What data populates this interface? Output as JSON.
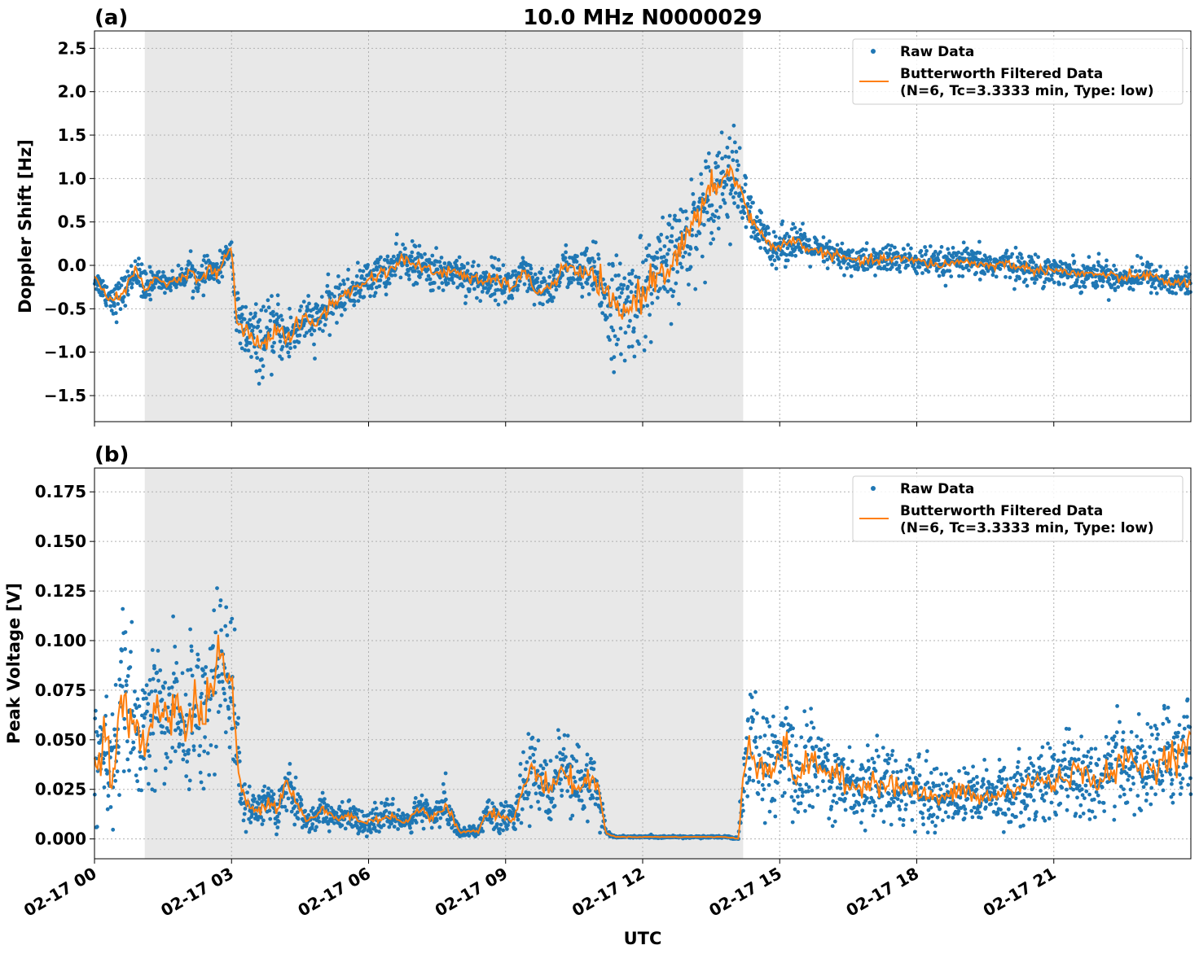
{
  "figure": {
    "title": "10.0 MHz N0000029",
    "xlabel": "UTC",
    "x_tick_labels": [
      "02-17 00",
      "02-17 03",
      "02-17 06",
      "02-17 09",
      "02-17 12",
      "02-17 15",
      "02-17 18",
      "02-17 21"
    ],
    "shaded_region_hours": [
      1.1,
      14.2
    ],
    "colors": {
      "raw": "#1f77b4",
      "filtered": "#ff7f0e",
      "shade": "#e8e8e8",
      "grid": "#b0b0b0"
    }
  },
  "chart_data": [
    {
      "panel": "(a)",
      "type": "scatter",
      "title": "10.0 MHz N0000029",
      "ylabel": "Doppler Shift [Hz]",
      "xlabel": "",
      "xlim_hours": [
        0,
        24
      ],
      "ylim": [
        -1.8,
        2.7
      ],
      "y_ticks": [
        -1.5,
        -1.0,
        -0.5,
        0.0,
        0.5,
        1.0,
        1.5,
        2.0,
        2.5
      ],
      "y_tick_labels": [
        "−1.5",
        "−1.0",
        "−0.5",
        "0.0",
        "0.5",
        "1.0",
        "1.5",
        "2.0",
        "2.5"
      ],
      "grid": true,
      "legend": {
        "placement": "top-right",
        "entries": [
          "Raw Data",
          "Butterworth Filtered Data",
          "(N=6, Tc=3.3333 min, Type: low)"
        ]
      },
      "series": [
        {
          "name": "Butterworth Filtered Data (N=6, Tc=3.3333 min, Type: low)",
          "x_hours": [
            0,
            0.3,
            0.5,
            0.7,
            0.9,
            1.1,
            1.3,
            1.6,
            1.9,
            2.1,
            2.3,
            2.5,
            2.7,
            2.85,
            3.0,
            3.1,
            3.2,
            3.4,
            3.6,
            3.8,
            4.0,
            4.2,
            4.4,
            4.6,
            4.8,
            5.0,
            5.3,
            5.6,
            5.9,
            6.2,
            6.5,
            6.8,
            7.0,
            7.3,
            7.6,
            7.9,
            8.2,
            8.5,
            8.8,
            9.1,
            9.4,
            9.7,
            10.0,
            10.3,
            10.6,
            10.9,
            11.1,
            11.3,
            11.5,
            11.7,
            11.9,
            12.1,
            12.3,
            12.5,
            12.7,
            12.9,
            13.1,
            13.3,
            13.5,
            13.7,
            13.9,
            14.1,
            14.3,
            14.5,
            14.8,
            15.0,
            15.3,
            15.6,
            15.9,
            16.3,
            16.7,
            17.0,
            17.5,
            18.0,
            18.5,
            19.0,
            19.5,
            20.0,
            20.5,
            21.0,
            21.5,
            22.0,
            22.5,
            23.0,
            23.5,
            24.0
          ],
          "y": [
            -0.15,
            -0.35,
            -0.4,
            -0.25,
            -0.05,
            -0.3,
            -0.15,
            -0.2,
            -0.15,
            -0.05,
            -0.2,
            -0.05,
            -0.1,
            0.1,
            0.2,
            -0.55,
            -0.75,
            -0.8,
            -0.9,
            -0.85,
            -0.7,
            -0.85,
            -0.75,
            -0.6,
            -0.7,
            -0.55,
            -0.4,
            -0.3,
            -0.2,
            -0.1,
            -0.05,
            0.1,
            0.0,
            -0.05,
            -0.1,
            -0.05,
            -0.15,
            -0.2,
            -0.15,
            -0.25,
            -0.1,
            -0.3,
            -0.25,
            0.0,
            -0.1,
            -0.1,
            -0.25,
            -0.45,
            -0.55,
            -0.5,
            -0.35,
            -0.25,
            -0.1,
            -0.05,
            0.1,
            0.25,
            0.45,
            0.65,
            0.85,
            1.0,
            1.05,
            0.95,
            0.6,
            0.4,
            0.25,
            0.2,
            0.3,
            0.2,
            0.15,
            0.1,
            0.05,
            0.05,
            0.08,
            0.05,
            0.0,
            0.05,
            0.0,
            0.02,
            -0.05,
            -0.05,
            -0.1,
            -0.1,
            -0.15,
            -0.1,
            -0.2,
            -0.2
          ]
        },
        {
          "name": "Raw Data",
          "spread_hz": [
            0.1,
            0.15,
            0.2,
            0.15,
            0.15,
            0.25,
            0.1,
            0.1,
            0.1,
            0.15,
            0.15,
            0.15,
            0.15,
            0.1,
            0.1,
            0.3,
            0.35,
            0.35,
            0.35,
            0.35,
            0.3,
            0.3,
            0.3,
            0.25,
            0.25,
            0.25,
            0.2,
            0.2,
            0.2,
            0.2,
            0.2,
            0.2,
            0.2,
            0.2,
            0.2,
            0.2,
            0.2,
            0.2,
            0.2,
            0.2,
            0.2,
            0.2,
            0.2,
            0.2,
            0.25,
            0.3,
            0.4,
            0.5,
            0.55,
            0.55,
            0.55,
            0.55,
            0.5,
            0.5,
            0.5,
            0.5,
            0.5,
            0.5,
            0.5,
            0.5,
            0.5,
            0.45,
            0.3,
            0.25,
            0.2,
            0.2,
            0.2,
            0.15,
            0.15,
            0.15,
            0.15,
            0.15,
            0.15,
            0.15,
            0.15,
            0.15,
            0.15,
            0.15,
            0.15,
            0.15,
            0.15,
            0.15,
            0.15,
            0.15,
            0.15,
            0.15
          ]
        }
      ]
    },
    {
      "panel": "(b)",
      "type": "scatter",
      "ylabel": "Peak Voltage [V]",
      "xlabel": "UTC",
      "xlim_hours": [
        0,
        24
      ],
      "ylim": [
        -0.01,
        0.187
      ],
      "y_ticks": [
        0.0,
        0.025,
        0.05,
        0.075,
        0.1,
        0.125,
        0.15,
        0.175
      ],
      "y_tick_labels": [
        "0.000",
        "0.025",
        "0.050",
        "0.075",
        "0.100",
        "0.125",
        "0.150",
        "0.175"
      ],
      "grid": true,
      "legend": {
        "placement": "top-right",
        "entries": [
          "Raw Data",
          "Butterworth Filtered Data",
          "(N=6, Tc=3.3333 min, Type: low)"
        ]
      },
      "series": [
        {
          "name": "Butterworth Filtered Data (N=6, Tc=3.3333 min, Type: low)",
          "x_hours": [
            0,
            0.2,
            0.4,
            0.6,
            0.8,
            1.0,
            1.2,
            1.4,
            1.6,
            1.8,
            2.0,
            2.2,
            2.4,
            2.6,
            2.8,
            3.0,
            3.2,
            3.4,
            3.6,
            3.8,
            4.0,
            4.2,
            4.4,
            4.6,
            4.8,
            5.0,
            5.3,
            5.6,
            5.9,
            6.2,
            6.5,
            6.8,
            7.1,
            7.4,
            7.7,
            8.0,
            8.2,
            8.4,
            8.6,
            8.8,
            9.0,
            9.2,
            9.4,
            9.6,
            9.8,
            10.0,
            10.2,
            10.4,
            10.6,
            10.8,
            11.0,
            11.2,
            11.4,
            11.8,
            12.2,
            12.6,
            13.0,
            13.4,
            13.8,
            14.1,
            14.2,
            14.3,
            14.5,
            14.8,
            15.1,
            15.4,
            15.7,
            16.0,
            16.3,
            16.6,
            17.0,
            17.4,
            17.8,
            18.2,
            18.6,
            19.0,
            19.4,
            19.8,
            20.2,
            20.6,
            21.0,
            21.4,
            21.8,
            22.2,
            22.6,
            23.0,
            23.4,
            23.8,
            24.0
          ],
          "y": [
            0.035,
            0.055,
            0.03,
            0.07,
            0.06,
            0.045,
            0.055,
            0.07,
            0.06,
            0.075,
            0.05,
            0.07,
            0.06,
            0.085,
            0.09,
            0.075,
            0.025,
            0.015,
            0.015,
            0.02,
            0.015,
            0.03,
            0.02,
            0.01,
            0.01,
            0.015,
            0.01,
            0.012,
            0.008,
            0.01,
            0.012,
            0.008,
            0.015,
            0.01,
            0.018,
            0.003,
            0.004,
            0.004,
            0.015,
            0.012,
            0.01,
            0.01,
            0.028,
            0.035,
            0.03,
            0.025,
            0.035,
            0.03,
            0.025,
            0.03,
            0.028,
            0.003,
            0.001,
            0.001,
            0.001,
            0.001,
            0.001,
            0.001,
            0.001,
            0.0,
            0.03,
            0.05,
            0.04,
            0.035,
            0.045,
            0.03,
            0.04,
            0.035,
            0.03,
            0.025,
            0.03,
            0.028,
            0.025,
            0.022,
            0.02,
            0.025,
            0.02,
            0.022,
            0.025,
            0.03,
            0.028,
            0.035,
            0.03,
            0.032,
            0.04,
            0.035,
            0.04,
            0.045,
            0.05
          ]
        },
        {
          "name": "Raw Data",
          "spread_v": [
            0.025,
            0.03,
            0.03,
            0.035,
            0.04,
            0.03,
            0.03,
            0.035,
            0.03,
            0.035,
            0.03,
            0.035,
            0.035,
            0.04,
            0.04,
            0.035,
            0.012,
            0.008,
            0.008,
            0.01,
            0.01,
            0.015,
            0.01,
            0.006,
            0.006,
            0.008,
            0.006,
            0.006,
            0.005,
            0.006,
            0.006,
            0.005,
            0.008,
            0.006,
            0.01,
            0.002,
            0.002,
            0.002,
            0.008,
            0.008,
            0.006,
            0.006,
            0.015,
            0.018,
            0.016,
            0.015,
            0.018,
            0.016,
            0.014,
            0.016,
            0.015,
            0.001,
            0.0005,
            0.0005,
            0.0005,
            0.0005,
            0.0005,
            0.0005,
            0.0005,
            0.001,
            0.02,
            0.03,
            0.025,
            0.022,
            0.025,
            0.02,
            0.022,
            0.02,
            0.018,
            0.016,
            0.018,
            0.016,
            0.015,
            0.014,
            0.013,
            0.015,
            0.013,
            0.014,
            0.015,
            0.017,
            0.016,
            0.02,
            0.018,
            0.018,
            0.022,
            0.02,
            0.022,
            0.025,
            0.028
          ]
        }
      ]
    }
  ]
}
